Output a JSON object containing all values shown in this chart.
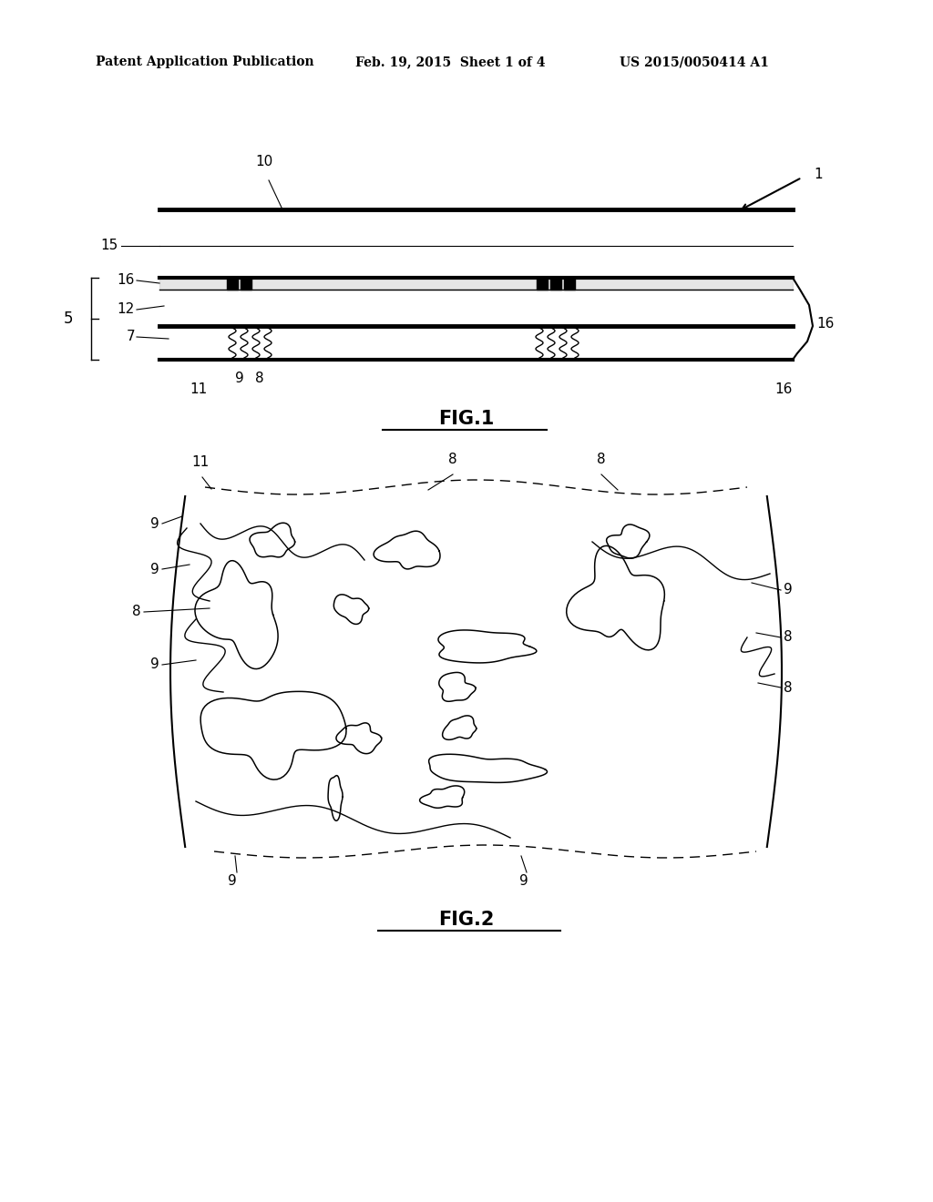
{
  "background_color": "#ffffff",
  "header_text": "Patent Application Publication",
  "header_date": "Feb. 19, 2015  Sheet 1 of 4",
  "header_patent": "US 2015/0050414 A1",
  "fig1_label": "FIG.1",
  "fig2_label": "FIG.2"
}
